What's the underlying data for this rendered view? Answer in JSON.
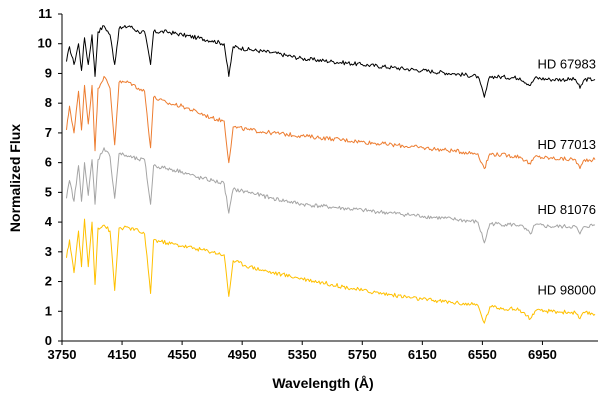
{
  "chart_data": {
    "type": "line",
    "xlabel": "Wavelength (Å)",
    "ylabel": "Normalized Flux",
    "xlim": [
      3750,
      7320
    ],
    "ylim": [
      0,
      11
    ],
    "xticks": [
      3750,
      4150,
      4550,
      4950,
      5350,
      5750,
      6150,
      6550,
      6950
    ],
    "yticks": [
      0,
      1,
      2,
      3,
      4,
      5,
      6,
      7,
      8,
      9,
      10,
      11
    ],
    "grid": false,
    "legend": "labels placed beside each spectrum",
    "series": [
      {
        "name": "HD 67983",
        "color": "#000000",
        "points": [
          [
            3780,
            9.4
          ],
          [
            3800,
            9.9
          ],
          [
            3830,
            9.3
          ],
          [
            3860,
            10.0
          ],
          [
            3880,
            9.1
          ],
          [
            3900,
            10.2
          ],
          [
            3925,
            9.3
          ],
          [
            3950,
            10.3
          ],
          [
            3970,
            8.9
          ],
          [
            3990,
            10.4
          ],
          [
            4030,
            10.6
          ],
          [
            4070,
            10.3
          ],
          [
            4101,
            9.3
          ],
          [
            4130,
            10.5
          ],
          [
            4200,
            10.6
          ],
          [
            4260,
            10.4
          ],
          [
            4300,
            10.4
          ],
          [
            4340,
            9.3
          ],
          [
            4360,
            10.4
          ],
          [
            4450,
            10.4
          ],
          [
            4550,
            10.3
          ],
          [
            4650,
            10.2
          ],
          [
            4750,
            10.1
          ],
          [
            4830,
            10.0
          ],
          [
            4861,
            8.9
          ],
          [
            4890,
            9.9
          ],
          [
            5000,
            9.8
          ],
          [
            5150,
            9.7
          ],
          [
            5350,
            9.5
          ],
          [
            5550,
            9.4
          ],
          [
            5750,
            9.3
          ],
          [
            5950,
            9.2
          ],
          [
            6150,
            9.1
          ],
          [
            6350,
            9.0
          ],
          [
            6520,
            8.9
          ],
          [
            6563,
            8.2
          ],
          [
            6600,
            8.9
          ],
          [
            6800,
            8.85
          ],
          [
            6870,
            8.6
          ],
          [
            6900,
            8.85
          ],
          [
            7000,
            8.8
          ],
          [
            7170,
            8.8
          ],
          [
            7200,
            8.5
          ],
          [
            7230,
            8.8
          ],
          [
            7300,
            8.8
          ]
        ]
      },
      {
        "name": "HD 77013",
        "color": "#ED7D31",
        "points": [
          [
            3780,
            7.1
          ],
          [
            3800,
            7.9
          ],
          [
            3830,
            7.0
          ],
          [
            3860,
            8.4
          ],
          [
            3880,
            7.1
          ],
          [
            3900,
            8.6
          ],
          [
            3925,
            7.3
          ],
          [
            3950,
            8.6
          ],
          [
            3970,
            6.4
          ],
          [
            3990,
            8.5
          ],
          [
            4030,
            8.9
          ],
          [
            4070,
            8.5
          ],
          [
            4101,
            6.6
          ],
          [
            4130,
            8.7
          ],
          [
            4200,
            8.7
          ],
          [
            4260,
            8.5
          ],
          [
            4300,
            8.4
          ],
          [
            4340,
            6.5
          ],
          [
            4360,
            8.2
          ],
          [
            4450,
            8.0
          ],
          [
            4550,
            7.9
          ],
          [
            4650,
            7.7
          ],
          [
            4750,
            7.5
          ],
          [
            4830,
            7.4
          ],
          [
            4861,
            6.0
          ],
          [
            4890,
            7.2
          ],
          [
            5000,
            7.1
          ],
          [
            5150,
            7.0
          ],
          [
            5350,
            6.9
          ],
          [
            5550,
            6.8
          ],
          [
            5750,
            6.7
          ],
          [
            5950,
            6.6
          ],
          [
            6150,
            6.5
          ],
          [
            6350,
            6.4
          ],
          [
            6520,
            6.3
          ],
          [
            6563,
            5.8
          ],
          [
            6600,
            6.3
          ],
          [
            6800,
            6.2
          ],
          [
            6870,
            5.95
          ],
          [
            6900,
            6.2
          ],
          [
            7000,
            6.15
          ],
          [
            7170,
            6.1
          ],
          [
            7200,
            5.8
          ],
          [
            7230,
            6.1
          ],
          [
            7300,
            6.1
          ]
        ]
      },
      {
        "name": "HD 81076",
        "color": "#A5A5A5",
        "points": [
          [
            3780,
            4.8
          ],
          [
            3800,
            5.4
          ],
          [
            3830,
            4.7
          ],
          [
            3860,
            5.9
          ],
          [
            3880,
            4.7
          ],
          [
            3900,
            6.0
          ],
          [
            3925,
            4.9
          ],
          [
            3950,
            6.1
          ],
          [
            3970,
            4.6
          ],
          [
            3990,
            6.1
          ],
          [
            4030,
            6.5
          ],
          [
            4070,
            6.2
          ],
          [
            4101,
            4.8
          ],
          [
            4130,
            6.3
          ],
          [
            4200,
            6.2
          ],
          [
            4260,
            6.1
          ],
          [
            4300,
            6.1
          ],
          [
            4340,
            4.6
          ],
          [
            4360,
            5.9
          ],
          [
            4450,
            5.8
          ],
          [
            4550,
            5.7
          ],
          [
            4650,
            5.5
          ],
          [
            4750,
            5.4
          ],
          [
            4830,
            5.3
          ],
          [
            4861,
            4.3
          ],
          [
            4890,
            5.1
          ],
          [
            5000,
            5.0
          ],
          [
            5150,
            4.8
          ],
          [
            5350,
            4.6
          ],
          [
            5550,
            4.5
          ],
          [
            5750,
            4.4
          ],
          [
            5950,
            4.3
          ],
          [
            6150,
            4.2
          ],
          [
            6350,
            4.1
          ],
          [
            6520,
            4.0
          ],
          [
            6563,
            3.3
          ],
          [
            6600,
            3.95
          ],
          [
            6800,
            3.9
          ],
          [
            6870,
            3.6
          ],
          [
            6900,
            3.9
          ],
          [
            7000,
            3.85
          ],
          [
            7170,
            3.85
          ],
          [
            7200,
            3.6
          ],
          [
            7230,
            3.85
          ],
          [
            7300,
            3.9
          ]
        ]
      },
      {
        "name": "HD 98000",
        "color": "#FFC000",
        "points": [
          [
            3780,
            2.8
          ],
          [
            3800,
            3.4
          ],
          [
            3830,
            2.3
          ],
          [
            3860,
            3.7
          ],
          [
            3880,
            2.5
          ],
          [
            3900,
            4.1
          ],
          [
            3925,
            2.5
          ],
          [
            3950,
            4.0
          ],
          [
            3970,
            1.9
          ],
          [
            3990,
            3.8
          ],
          [
            4030,
            3.9
          ],
          [
            4070,
            3.7
          ],
          [
            4101,
            1.7
          ],
          [
            4130,
            3.8
          ],
          [
            4200,
            3.8
          ],
          [
            4260,
            3.7
          ],
          [
            4300,
            3.6
          ],
          [
            4340,
            1.6
          ],
          [
            4360,
            3.4
          ],
          [
            4450,
            3.3
          ],
          [
            4550,
            3.2
          ],
          [
            4650,
            3.1
          ],
          [
            4750,
            3.0
          ],
          [
            4830,
            2.9
          ],
          [
            4861,
            1.5
          ],
          [
            4890,
            2.7
          ],
          [
            5000,
            2.5
          ],
          [
            5150,
            2.3
          ],
          [
            5350,
            2.1
          ],
          [
            5550,
            1.9
          ],
          [
            5750,
            1.7
          ],
          [
            5950,
            1.55
          ],
          [
            6150,
            1.4
          ],
          [
            6350,
            1.3
          ],
          [
            6520,
            1.2
          ],
          [
            6563,
            0.6
          ],
          [
            6600,
            1.15
          ],
          [
            6800,
            1.05
          ],
          [
            6870,
            0.75
          ],
          [
            6900,
            1.0
          ],
          [
            7000,
            1.0
          ],
          [
            7170,
            0.95
          ],
          [
            7200,
            0.75
          ],
          [
            7230,
            0.95
          ],
          [
            7300,
            0.9
          ]
        ]
      }
    ]
  }
}
